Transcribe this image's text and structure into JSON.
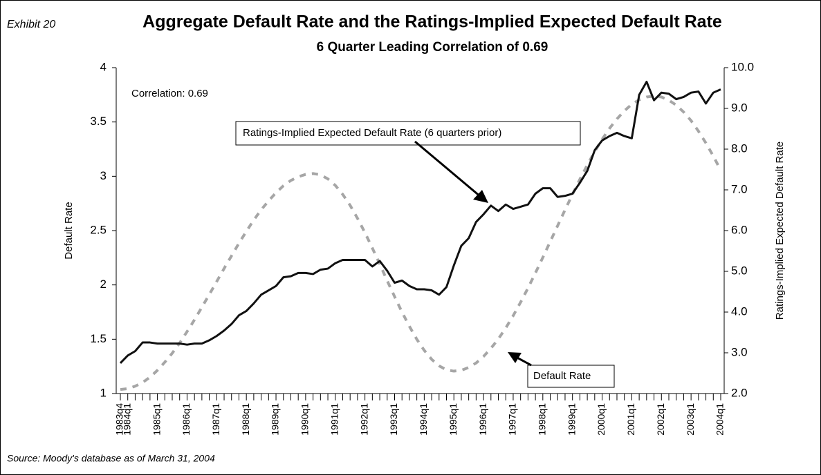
{
  "chart_data": {
    "type": "line",
    "exhibit": "Exhibit 20",
    "title": "Aggregate Default Rate and the Ratings-Implied Expected Default Rate",
    "subtitle": "6 Quarter Leading Correlation of 0.69",
    "annotation": "Correlation:  0.69",
    "ylabel": "Default Rate",
    "y2label": "Ratings-Implied Expected Default Rate",
    "source": "Source: Moody's database as of March 31, 2004",
    "categories": [
      "1983q4",
      "1984q1",
      null,
      null,
      null,
      "1985q1",
      null,
      null,
      null,
      "1986q1",
      null,
      null,
      null,
      "1987q1",
      null,
      null,
      null,
      "1988q1",
      null,
      null,
      null,
      "1989q1",
      null,
      null,
      null,
      "1990q1",
      null,
      null,
      null,
      "1991q1",
      null,
      null,
      null,
      "1992q1",
      null,
      null,
      null,
      "1993q1",
      null,
      null,
      null,
      "1994q1",
      null,
      null,
      null,
      "1995q1",
      null,
      null,
      null,
      "1996q1",
      null,
      null,
      null,
      "1997q1",
      null,
      null,
      null,
      "1998q1",
      null,
      null,
      null,
      "1999q1",
      null,
      null,
      null,
      "2000q1",
      null,
      null,
      null,
      "2001q1",
      null,
      null,
      null,
      "2002q1",
      null,
      null,
      null,
      "2003q1",
      null,
      null,
      null,
      "2004q1"
    ],
    "ylim": [
      1,
      4
    ],
    "yticks": [
      1,
      1.5,
      2,
      2.5,
      3,
      3.5,
      4
    ],
    "y2lim": [
      2,
      10
    ],
    "y2ticks": [
      {
        "value": 2,
        "label": "2.0"
      },
      {
        "value": 3,
        "label": "3.0"
      },
      {
        "value": 4,
        "label": "4.0"
      },
      {
        "value": 5,
        "label": "5.0"
      },
      {
        "value": 6,
        "label": "6.0"
      },
      {
        "value": 7,
        "label": "7.0"
      },
      {
        "value": 8,
        "label": "8.0"
      },
      {
        "value": 9,
        "label": "9.0"
      },
      {
        "value": 10,
        "label": "10.0"
      }
    ],
    "series": [
      {
        "name": "Ratings-Implied Expected Default Rate (6 quarters prior)",
        "color": "#111111",
        "style": "solid",
        "values": [
          1.28,
          1.35,
          1.39,
          1.47,
          1.47,
          1.46,
          1.46,
          1.46,
          1.46,
          1.45,
          1.46,
          1.46,
          1.49,
          1.53,
          1.58,
          1.64,
          1.72,
          1.76,
          1.83,
          1.91,
          1.95,
          1.99,
          2.07,
          2.08,
          2.11,
          2.11,
          2.1,
          2.14,
          2.15,
          2.2,
          2.23,
          2.23,
          2.23,
          2.23,
          2.17,
          2.22,
          2.13,
          2.02,
          2.04,
          1.99,
          1.96,
          1.96,
          1.95,
          1.91,
          1.98,
          2.18,
          2.36,
          2.43,
          2.58,
          2.65,
          2.73,
          2.68,
          2.74,
          2.7,
          2.72,
          2.74,
          2.84,
          2.89,
          2.89,
          2.81,
          2.82,
          2.84,
          2.94,
          3.05,
          3.24,
          3.33,
          3.37,
          3.4,
          3.37,
          3.35,
          3.75,
          3.87,
          3.7,
          3.77,
          3.76,
          3.71,
          3.73,
          3.77,
          3.78,
          3.67,
          3.77,
          3.8
        ]
      },
      {
        "name": "Default Rate",
        "color": "#a6a6a6",
        "style": "dashed",
        "axis": "y2",
        "values": [
          2.1,
          2.12,
          2.18,
          2.27,
          2.4,
          2.57,
          2.77,
          2.99,
          3.24,
          3.52,
          3.81,
          4.12,
          4.43,
          4.75,
          5.07,
          5.38,
          5.69,
          5.98,
          6.26,
          6.51,
          6.73,
          6.93,
          7.1,
          7.23,
          7.32,
          7.38,
          7.4,
          7.37,
          7.27,
          7.11,
          6.89,
          6.62,
          6.3,
          5.95,
          5.57,
          5.18,
          4.77,
          4.38,
          4.0,
          3.65,
          3.33,
          3.06,
          2.84,
          2.68,
          2.58,
          2.55,
          2.57,
          2.64,
          2.75,
          2.91,
          3.11,
          3.34,
          3.61,
          3.91,
          4.24,
          4.59,
          4.96,
          5.34,
          5.73,
          6.12,
          6.51,
          6.89,
          7.26,
          7.61,
          7.94,
          8.24,
          8.51,
          8.74,
          8.94,
          9.1,
          9.21,
          9.28,
          9.3,
          9.28,
          9.2,
          9.08,
          8.91,
          8.7,
          8.44,
          8.15,
          7.83,
          7.48
        ]
      }
    ]
  }
}
